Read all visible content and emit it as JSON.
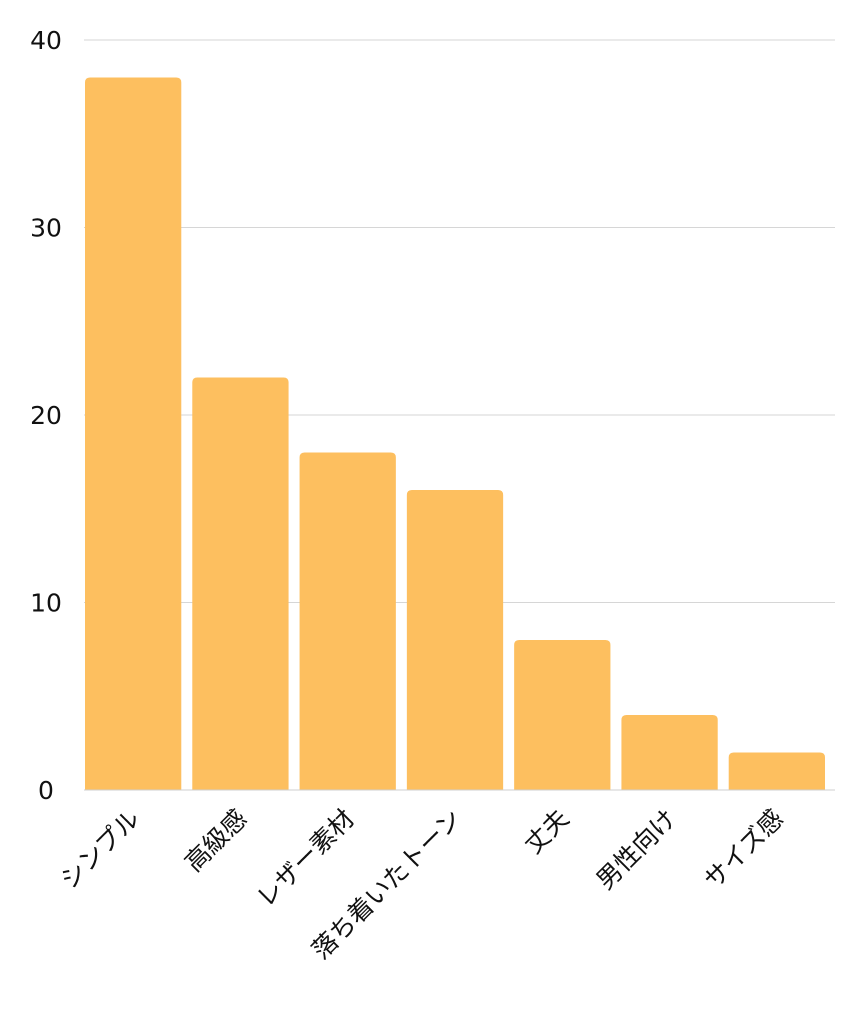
{
  "chart_data": {
    "type": "bar",
    "title": "",
    "xlabel": "",
    "ylabel": "",
    "categories": [
      "シンプル",
      "高級感",
      "レザー素材",
      "落ち着いたトーン",
      "丈夫",
      "男性向け",
      "サイズ感"
    ],
    "values": [
      38,
      22,
      18,
      16,
      8,
      4,
      2
    ],
    "ylim": [
      0,
      40
    ],
    "yticks": [
      0,
      10,
      20,
      30,
      40
    ],
    "grid": true,
    "legend": "none",
    "bar_color": "#FDBF5F",
    "grid_color": "#D6D6D6",
    "text_color": "#111111"
  }
}
